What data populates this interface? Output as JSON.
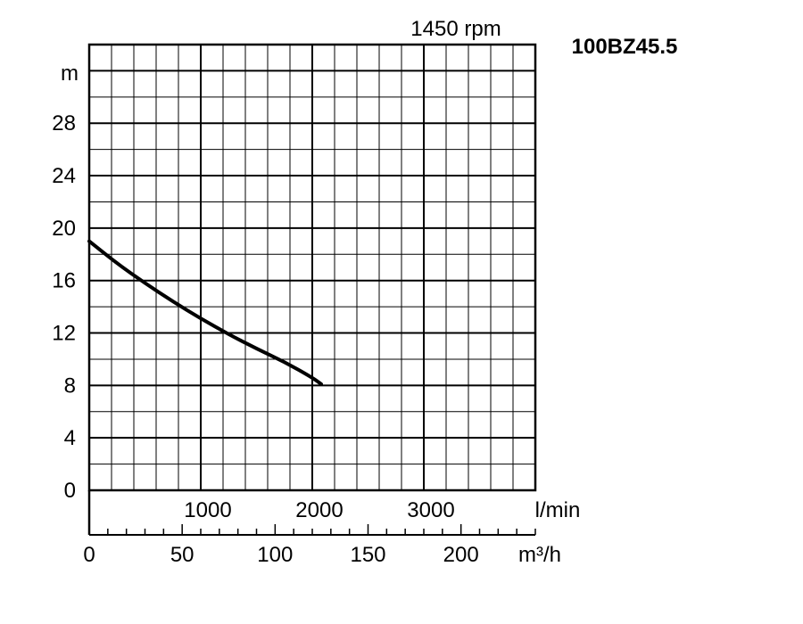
{
  "chart_data": {
    "type": "line",
    "title": "100BZ45.5",
    "subtitle": "1450 rpm",
    "ylabel": "m",
    "ylim": [
      0,
      34
    ],
    "y_ticks": [
      0,
      4,
      8,
      12,
      16,
      20,
      24,
      28
    ],
    "x_primary": {
      "label": "l/min",
      "range": [
        0,
        4000
      ],
      "ticks": [
        1000,
        2000,
        3000
      ]
    },
    "x_secondary": {
      "label": "m³/h",
      "range": [
        0,
        240
      ],
      "ticks": [
        0,
        50,
        100,
        150,
        200
      ]
    },
    "grid": true,
    "series": [
      {
        "x": [
          0,
          250,
          500,
          750,
          1000,
          1250,
          1500,
          1750,
          2000,
          2080
        ],
        "values": [
          19.0,
          17.3,
          15.8,
          14.4,
          13.1,
          11.9,
          10.8,
          9.8,
          8.6,
          8.1
        ]
      }
    ]
  }
}
